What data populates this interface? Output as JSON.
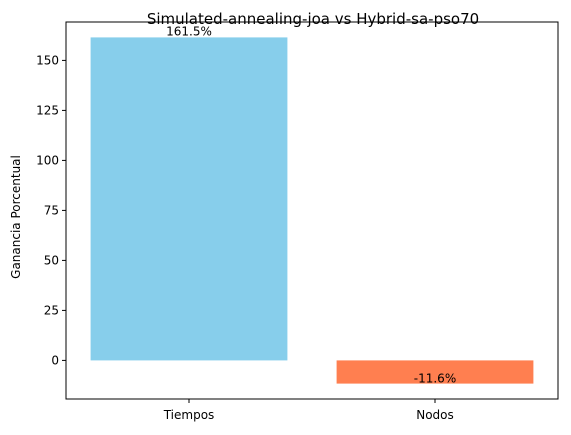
{
  "chart_data": {
    "type": "bar",
    "title": "Simulated-annealing-joa vs Hybrid-sa-pso70",
    "xlabel": "",
    "ylabel": "Ganancia Porcentual",
    "categories": [
      "Tiempos",
      "Nodos"
    ],
    "values": [
      161.5,
      -11.6
    ],
    "data_labels": [
      "161.5%",
      "-11.6%"
    ],
    "colors": [
      "#87CEEB",
      "#FF7F50"
    ],
    "ylim": [
      -19.3,
      169.2
    ],
    "yticks": [
      0,
      25,
      50,
      75,
      100,
      125,
      150
    ],
    "grid": false,
    "legend": "none"
  }
}
